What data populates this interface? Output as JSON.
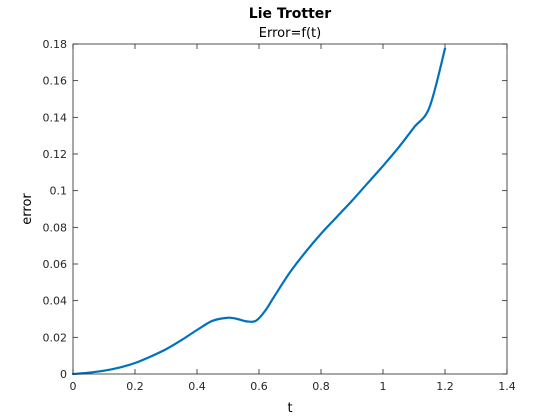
{
  "chart_data": {
    "type": "line",
    "title": "Lie Trotter",
    "subtitle": "Error=f(t)",
    "xlabel": "t",
    "ylabel": "error",
    "xlim": [
      0,
      1.4
    ],
    "ylim": [
      0,
      0.18
    ],
    "xticks": [
      0,
      0.2,
      0.4,
      0.6,
      0.8,
      1,
      1.2,
      1.4
    ],
    "xtick_labels": [
      "0",
      "0.2",
      "0.4",
      "0.6",
      "0.8",
      "1",
      "1.2",
      "1.4"
    ],
    "yticks": [
      0,
      0.02,
      0.04,
      0.06,
      0.08,
      0.1,
      0.12,
      0.14,
      0.16,
      0.18
    ],
    "ytick_labels": [
      "0",
      "0.02",
      "0.04",
      "0.06",
      "0.08",
      "0.1",
      "0.12",
      "0.14",
      "0.16",
      "0.18"
    ],
    "grid": false,
    "line_color": "#0072BD",
    "series": [
      {
        "x": [
          0,
          0.05,
          0.1,
          0.15,
          0.2,
          0.25,
          0.3,
          0.35,
          0.4,
          0.45,
          0.5,
          0.53,
          0.56,
          0.59,
          0.62,
          0.65,
          0.7,
          0.75,
          0.8,
          0.85,
          0.9,
          0.95,
          1.0,
          1.05,
          1.1,
          1.15,
          1.2
        ],
        "y": [
          0,
          0.0007,
          0.0018,
          0.0035,
          0.006,
          0.0095,
          0.0135,
          0.0185,
          0.024,
          0.029,
          0.0307,
          0.03,
          0.0287,
          0.029,
          0.0345,
          0.0425,
          0.0555,
          0.0665,
          0.0765,
          0.0855,
          0.0945,
          0.104,
          0.1135,
          0.1235,
          0.1345,
          0.1455,
          0.1775
        ]
      }
    ]
  }
}
